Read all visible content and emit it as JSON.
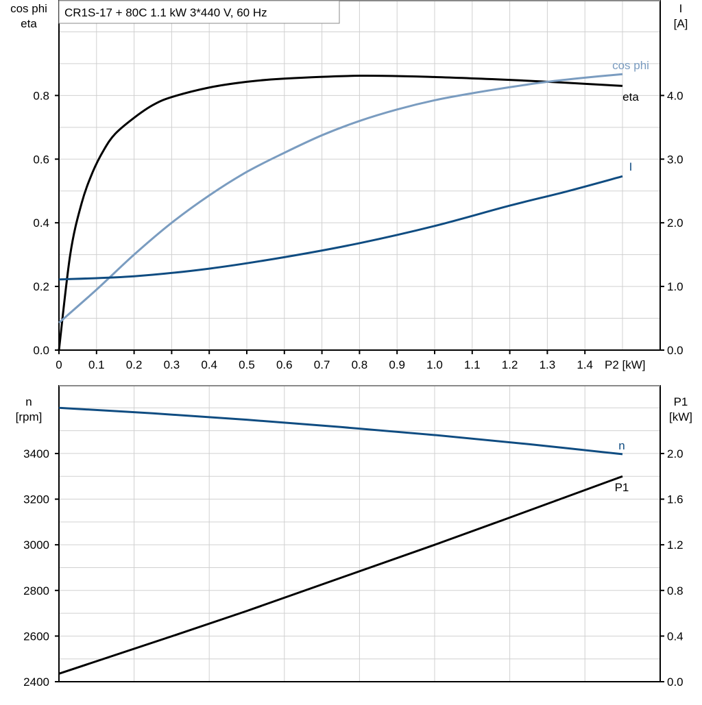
{
  "title": "CR1S-17 + 80C   1.1 kW   3*440 V, 60 Hz",
  "chart_data": [
    {
      "type": "line",
      "x": {
        "label": "P2 [kW]",
        "ticks": [
          "0",
          "0.1",
          "0.2",
          "0.3",
          "0.4",
          "0.5",
          "0.6",
          "0.7",
          "0.8",
          "0.9",
          "1.0",
          "1.1",
          "1.2",
          "1.3",
          "1.4"
        ],
        "range": [
          0,
          1.6
        ]
      },
      "y_left": {
        "label": [
          "cos phi",
          "eta"
        ],
        "ticks": [
          "0.0",
          "0.2",
          "0.4",
          "0.6",
          "0.8"
        ],
        "range": [
          0,
          1.1
        ]
      },
      "y_right": {
        "label": [
          "I",
          "[A]"
        ],
        "ticks": [
          "0.0",
          "1.0",
          "2.0",
          "3.0",
          "4.0"
        ],
        "range": [
          0,
          5.5
        ]
      },
      "grid": true,
      "series": [
        {
          "name": "eta",
          "axis": "left",
          "color": "#000000",
          "points": [
            [
              0,
              0
            ],
            [
              0.03,
              0.3
            ],
            [
              0.06,
              0.46
            ],
            [
              0.09,
              0.56
            ],
            [
              0.12,
              0.63
            ],
            [
              0.15,
              0.68
            ],
            [
              0.2,
              0.73
            ],
            [
              0.25,
              0.77
            ],
            [
              0.3,
              0.795
            ],
            [
              0.4,
              0.825
            ],
            [
              0.5,
              0.843
            ],
            [
              0.6,
              0.853
            ],
            [
              0.8,
              0.862
            ],
            [
              1.0,
              0.858
            ],
            [
              1.2,
              0.849
            ],
            [
              1.35,
              0.84
            ],
            [
              1.5,
              0.83
            ]
          ]
        },
        {
          "name": "cos phi",
          "axis": "left",
          "color": "#7a9cc0",
          "points": [
            [
              0,
              0.086
            ],
            [
              0.1,
              0.19
            ],
            [
              0.2,
              0.3
            ],
            [
              0.3,
              0.4
            ],
            [
              0.4,
              0.486
            ],
            [
              0.5,
              0.56
            ],
            [
              0.6,
              0.62
            ],
            [
              0.7,
              0.675
            ],
            [
              0.8,
              0.72
            ],
            [
              0.9,
              0.756
            ],
            [
              1.0,
              0.785
            ],
            [
              1.1,
              0.807
            ],
            [
              1.2,
              0.826
            ],
            [
              1.3,
              0.843
            ],
            [
              1.4,
              0.856
            ],
            [
              1.5,
              0.867
            ]
          ]
        },
        {
          "name": "I",
          "axis": "right",
          "color": "#0f4c81",
          "points": [
            [
              0,
              1.11
            ],
            [
              0.2,
              1.16
            ],
            [
              0.4,
              1.28
            ],
            [
              0.6,
              1.46
            ],
            [
              0.8,
              1.68
            ],
            [
              1.0,
              1.95
            ],
            [
              1.2,
              2.27
            ],
            [
              1.35,
              2.49
            ],
            [
              1.5,
              2.73
            ]
          ]
        }
      ]
    },
    {
      "type": "line",
      "x": {
        "range": [
          0,
          1.6
        ]
      },
      "y_left": {
        "label": [
          "n",
          "[rpm]"
        ],
        "ticks": [
          "2400",
          "2600",
          "2800",
          "3000",
          "3200",
          "3400"
        ],
        "range": [
          2400,
          3700
        ]
      },
      "y_right": {
        "label": [
          "P1",
          "[kW]"
        ],
        "ticks": [
          "0.0",
          "0.4",
          "0.8",
          "1.2",
          "1.6",
          "2.0"
        ],
        "range": [
          0,
          2.6
        ]
      },
      "grid": true,
      "series": [
        {
          "name": "n",
          "axis": "left",
          "color": "#0f4c81",
          "points": [
            [
              0,
              3600
            ],
            [
              0.25,
              3576
            ],
            [
              0.5,
              3548
            ],
            [
              0.75,
              3516
            ],
            [
              1.0,
              3481
            ],
            [
              1.25,
              3441
            ],
            [
              1.5,
              3397
            ]
          ]
        },
        {
          "name": "P1",
          "axis": "right",
          "color": "#000000",
          "points": [
            [
              0,
              0.07
            ],
            [
              0.5,
              0.62
            ],
            [
              1.0,
              1.2
            ],
            [
              1.5,
              1.8
            ]
          ]
        }
      ]
    }
  ]
}
